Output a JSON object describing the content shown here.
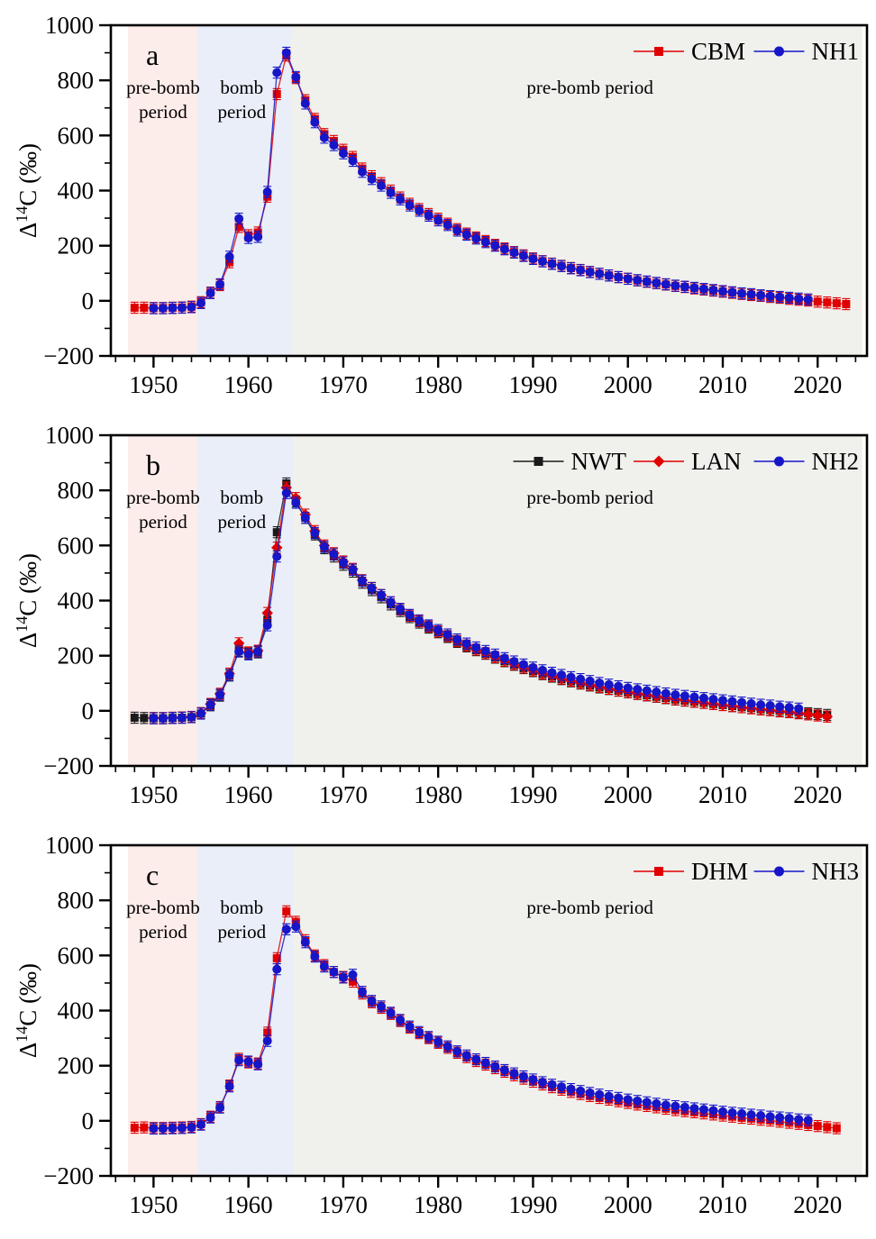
{
  "figure": {
    "background": "#ffffff",
    "axis_color": "#000000",
    "tick_label_color": "#000000"
  },
  "chart_data": [
    {
      "id": "a",
      "type": "line",
      "panel_letter": "a",
      "ylabel_parts": [
        "Δ",
        "14",
        "C (‰)"
      ],
      "xlim": [
        1945.5,
        2025.2
      ],
      "ylim": [
        -200,
        1000
      ],
      "x_major_ticks": [
        1950,
        1960,
        1970,
        1980,
        1990,
        2000,
        2010,
        2020
      ],
      "x_minor_step": 2,
      "y_major_ticks": [
        -200,
        0,
        200,
        400,
        600,
        800,
        1000
      ],
      "y_minor_step": 100,
      "regions": [
        {
          "name": "pre-bomb-shading",
          "from": 1947.3,
          "to": 1954.6,
          "color": "#fcecea"
        },
        {
          "name": "bomb-shading",
          "from": 1954.6,
          "to": 1964.5,
          "color": "#e9eef8"
        },
        {
          "name": "post-shading",
          "from": 1964.5,
          "to": 2024.7,
          "color": "#f0f0ed"
        }
      ],
      "labels": {
        "left": [
          "pre-bomb",
          "period"
        ],
        "left_center_year": 1951.0,
        "mid": [
          "bomb",
          "period"
        ],
        "mid_center_year": 1959.3,
        "right": "pre-bomb period",
        "right_center_year": 1996.0
      },
      "error_bar": 20,
      "series": [
        {
          "name": "CBM",
          "color": "#e00000",
          "marker": "square",
          "start_year": 1948,
          "values": [
            -25,
            -25,
            -26,
            -26,
            -25,
            -24,
            -21,
            -5,
            30,
            57,
            140,
            268,
            238,
            248,
            378,
            750,
            890,
            808,
            728,
            660,
            605,
            580,
            548,
            522,
            480,
            452,
            427,
            400,
            375,
            352,
            333,
            315,
            298,
            280,
            260,
            244,
            230,
            217,
            203,
            190,
            177,
            165,
            154,
            144,
            135,
            127,
            119,
            112,
            105,
            98,
            92,
            86,
            80,
            74,
            69,
            64,
            59,
            54,
            50,
            45,
            41,
            37,
            33,
            29,
            25,
            21,
            18,
            14,
            11,
            7,
            4,
            1,
            -3,
            -6,
            -9,
            -12
          ]
        },
        {
          "name": "NH1",
          "color": "#1616c8",
          "marker": "circle",
          "start_year": 1950,
          "values": [
            -27,
            -27,
            -26,
            -25,
            -23,
            -8,
            28,
            60,
            160,
            298,
            228,
            232,
            395,
            828,
            900,
            812,
            716,
            648,
            592,
            565,
            535,
            508,
            468,
            442,
            418,
            392,
            368,
            346,
            327,
            309,
            292,
            275,
            255,
            240,
            226,
            213,
            200,
            187,
            175,
            163,
            152,
            143,
            134,
            126,
            118,
            111,
            104,
            98,
            92,
            86,
            80,
            75,
            70,
            65,
            60,
            55,
            51,
            47,
            43,
            39,
            35,
            31,
            27,
            24,
            20,
            17,
            14,
            11,
            8,
            5
          ]
        }
      ]
    },
    {
      "id": "b",
      "type": "line",
      "panel_letter": "b",
      "ylabel_parts": [
        "Δ",
        "14",
        "C (‰)"
      ],
      "xlim": [
        1945.5,
        2025.2
      ],
      "ylim": [
        -200,
        1000
      ],
      "x_major_ticks": [
        1950,
        1960,
        1970,
        1980,
        1990,
        2000,
        2010,
        2020
      ],
      "x_minor_step": 2,
      "y_major_ticks": [
        -200,
        0,
        200,
        400,
        600,
        800,
        1000
      ],
      "y_minor_step": 100,
      "regions": [
        {
          "name": "pre-bomb-shading",
          "from": 1947.3,
          "to": 1954.6,
          "color": "#fcecea"
        },
        {
          "name": "bomb-shading",
          "from": 1954.6,
          "to": 1964.8,
          "color": "#e9eef8"
        },
        {
          "name": "post-shading",
          "from": 1964.8,
          "to": 2024.7,
          "color": "#f0f0ed"
        }
      ],
      "labels": {
        "left": [
          "pre-bomb",
          "period"
        ],
        "left_center_year": 1951.0,
        "mid": [
          "bomb",
          "period"
        ],
        "mid_center_year": 1959.3,
        "right": "pre-bomb period",
        "right_center_year": 1996.0
      },
      "error_bar": 20,
      "series": [
        {
          "name": "NWT",
          "color": "#1a1a1a",
          "marker": "square",
          "start_year": 1948,
          "values": [
            -25,
            -26,
            -27,
            -27,
            -26,
            -25,
            -23,
            -10,
            20,
            55,
            128,
            218,
            208,
            212,
            330,
            648,
            825,
            760,
            700,
            640,
            590,
            560,
            530,
            505,
            465,
            438,
            412,
            386,
            362,
            340,
            320,
            302,
            285,
            268,
            250,
            234,
            220,
            207,
            193,
            180,
            167,
            155,
            144,
            133,
            124,
            115,
            107,
            99,
            92,
            85,
            79,
            73,
            67,
            61,
            56,
            51,
            46,
            41,
            37,
            33,
            29,
            25,
            21,
            17,
            13,
            10,
            6,
            3,
            0,
            -3,
            -6,
            -9,
            -12,
            -15
          ]
        },
        {
          "name": "LAN",
          "color": "#e00000",
          "marker": "diamond",
          "start_year": 1950,
          "values": [
            -26,
            -26,
            -25,
            -24,
            -22,
            -8,
            25,
            62,
            135,
            245,
            212,
            218,
            355,
            592,
            810,
            772,
            712,
            652,
            600,
            572,
            542,
            515,
            474,
            446,
            420,
            393,
            368,
            345,
            325,
            306,
            288,
            271,
            253,
            237,
            222,
            209,
            195,
            182,
            169,
            157,
            146,
            135,
            126,
            117,
            109,
            101,
            94,
            87,
            80,
            74,
            68,
            62,
            57,
            52,
            47,
            42,
            38,
            33,
            29,
            25,
            21,
            17,
            13,
            9,
            5,
            2,
            -2,
            -5,
            -9,
            -13,
            -17,
            -21
          ]
        },
        {
          "name": "NH2",
          "color": "#1616c8",
          "marker": "circle",
          "start_year": 1950,
          "values": [
            -27,
            -27,
            -26,
            -25,
            -23,
            -10,
            22,
            58,
            130,
            215,
            205,
            215,
            310,
            560,
            790,
            755,
            700,
            645,
            595,
            568,
            538,
            512,
            472,
            445,
            420,
            394,
            370,
            348,
            328,
            310,
            293,
            277,
            259,
            244,
            230,
            217,
            204,
            191,
            179,
            168,
            157,
            147,
            138,
            130,
            122,
            115,
            108,
            101,
            95,
            89,
            83,
            78,
            73,
            68,
            63,
            58,
            54,
            50,
            46,
            42,
            38,
            34,
            30,
            26,
            22,
            19,
            15,
            12,
            8
          ]
        }
      ]
    },
    {
      "id": "c",
      "type": "line",
      "panel_letter": "c",
      "ylabel_parts": [
        "Δ",
        "14",
        "C (‰)"
      ],
      "xlim": [
        1945.5,
        2025.2
      ],
      "ylim": [
        -200,
        1000
      ],
      "x_major_ticks": [
        1950,
        1960,
        1970,
        1980,
        1990,
        2000,
        2010,
        2020
      ],
      "x_minor_step": 2,
      "y_major_ticks": [
        -200,
        0,
        200,
        400,
        600,
        800,
        1000
      ],
      "y_minor_step": 100,
      "regions": [
        {
          "name": "pre-bomb-shading",
          "from": 1947.3,
          "to": 1954.6,
          "color": "#fcecea"
        },
        {
          "name": "bomb-shading",
          "from": 1954.6,
          "to": 1964.8,
          "color": "#e9eef8"
        },
        {
          "name": "post-shading",
          "from": 1964.8,
          "to": 2024.7,
          "color": "#f0f0ed"
        }
      ],
      "labels": {
        "left": [
          "pre-bomb",
          "period"
        ],
        "left_center_year": 1951.0,
        "mid": [
          "bomb",
          "period"
        ],
        "mid_center_year": 1959.3,
        "right": "pre-bomb period",
        "right_center_year": 1996.0
      },
      "error_bar": 20,
      "series": [
        {
          "name": "DHM",
          "color": "#e00000",
          "marker": "square",
          "start_year": 1948,
          "values": [
            -25,
            -24,
            -26,
            -26,
            -25,
            -24,
            -22,
            -12,
            15,
            50,
            128,
            225,
            212,
            208,
            320,
            590,
            760,
            722,
            655,
            600,
            565,
            540,
            522,
            505,
            462,
            430,
            410,
            388,
            362,
            338,
            318,
            300,
            283,
            265,
            247,
            231,
            217,
            204,
            191,
            178,
            165,
            153,
            142,
            132,
            122,
            113,
            105,
            97,
            90,
            83,
            77,
            71,
            65,
            59,
            54,
            49,
            44,
            39,
            35,
            31,
            27,
            23,
            19,
            15,
            11,
            8,
            4,
            1,
            -3,
            -7,
            -11,
            -15,
            -19,
            -23,
            -27
          ]
        },
        {
          "name": "NH3",
          "color": "#1616c8",
          "marker": "circle",
          "start_year": 1950,
          "values": [
            -28,
            -28,
            -27,
            -26,
            -24,
            -14,
            12,
            48,
            125,
            220,
            215,
            205,
            290,
            550,
            695,
            705,
            648,
            596,
            560,
            540,
            520,
            530,
            468,
            435,
            415,
            392,
            366,
            342,
            322,
            304,
            287,
            270,
            252,
            237,
            223,
            210,
            197,
            184,
            172,
            161,
            150,
            140,
            131,
            123,
            115,
            108,
            101,
            95,
            89,
            83,
            77,
            72,
            67,
            62,
            57,
            53,
            49,
            45,
            41,
            37,
            33,
            29,
            26,
            22,
            19,
            15,
            12,
            9,
            5,
            2
          ]
        }
      ]
    }
  ]
}
